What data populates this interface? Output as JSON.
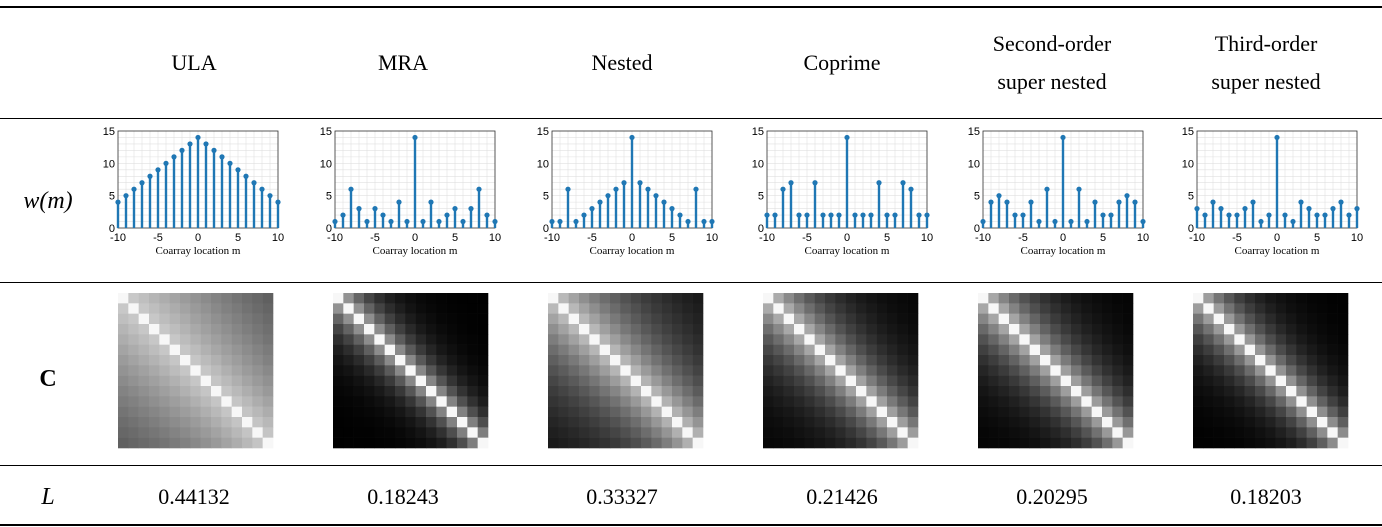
{
  "header": {
    "columns": [
      {
        "line1": "ULA",
        "line2": ""
      },
      {
        "line1": "MRA",
        "line2": ""
      },
      {
        "line1": "Nested",
        "line2": ""
      },
      {
        "line1": "Coprime",
        "line2": ""
      },
      {
        "line1": "Second-order",
        "line2": "super nested"
      },
      {
        "line1": "Third-order",
        "line2": "super nested"
      }
    ]
  },
  "rows": {
    "weight_label": "w(m)",
    "matrix_label": "C",
    "loss_label": "L"
  },
  "loss_values": [
    "0.44132",
    "0.18243",
    "0.33327",
    "0.21426",
    "0.20295",
    "0.18203"
  ],
  "colors": {
    "stem": "#1f77b4",
    "grid": "#e0e0e0"
  },
  "chart_data": [
    {
      "type": "bar",
      "title": "ULA",
      "xlabel": "Coarray location m",
      "ylabel": "",
      "xticks": [
        "-10",
        "-5",
        "0",
        "5",
        "10"
      ],
      "yticks": [
        "0",
        "5",
        "10",
        "15"
      ],
      "xlim": [
        -10,
        10
      ],
      "ylim": [
        0,
        15
      ],
      "grid": true,
      "x": [
        -10,
        -9,
        -8,
        -7,
        -6,
        -5,
        -4,
        -3,
        -2,
        -1,
        0,
        1,
        2,
        3,
        4,
        5,
        6,
        7,
        8,
        9,
        10
      ],
      "values": [
        4,
        5,
        6,
        7,
        8,
        9,
        10,
        11,
        12,
        13,
        14,
        13,
        12,
        11,
        10,
        9,
        8,
        7,
        6,
        5,
        4
      ]
    },
    {
      "type": "bar",
      "title": "MRA",
      "xlabel": "Coarray location m",
      "ylabel": "",
      "xticks": [
        "-10",
        "-5",
        "0",
        "5",
        "10"
      ],
      "yticks": [
        "0",
        "5",
        "10",
        "15"
      ],
      "xlim": [
        -10,
        10
      ],
      "ylim": [
        0,
        15
      ],
      "grid": true,
      "x": [
        -10,
        -9,
        -8,
        -7,
        -6,
        -5,
        -4,
        -3,
        -2,
        -1,
        0,
        1,
        2,
        3,
        4,
        5,
        6,
        7,
        8,
        9,
        10
      ],
      "values": [
        1,
        2,
        6,
        3,
        1,
        3,
        2,
        1,
        4,
        1,
        14,
        1,
        4,
        1,
        2,
        3,
        1,
        3,
        6,
        2,
        1
      ]
    },
    {
      "type": "bar",
      "title": "Nested",
      "xlabel": "Coarray location m",
      "ylabel": "",
      "xticks": [
        "-10",
        "-5",
        "0",
        "5",
        "10"
      ],
      "yticks": [
        "0",
        "5",
        "10",
        "15"
      ],
      "xlim": [
        -10,
        10
      ],
      "ylim": [
        0,
        15
      ],
      "grid": true,
      "x": [
        -10,
        -9,
        -8,
        -7,
        -6,
        -5,
        -4,
        -3,
        -2,
        -1,
        0,
        1,
        2,
        3,
        4,
        5,
        6,
        7,
        8,
        9,
        10
      ],
      "values": [
        1,
        1,
        6,
        1,
        2,
        3,
        4,
        5,
        6,
        7,
        14,
        7,
        6,
        5,
        4,
        3,
        2,
        1,
        6,
        1,
        1
      ]
    },
    {
      "type": "bar",
      "title": "Coprime",
      "xlabel": "Coarray location m",
      "ylabel": "",
      "xticks": [
        "-10",
        "-5",
        "0",
        "5",
        "10"
      ],
      "yticks": [
        "0",
        "5",
        "10",
        "15"
      ],
      "xlim": [
        -10,
        10
      ],
      "ylim": [
        0,
        15
      ],
      "grid": true,
      "x": [
        -10,
        -9,
        -8,
        -7,
        -6,
        -5,
        -4,
        -3,
        -2,
        -1,
        0,
        1,
        2,
        3,
        4,
        5,
        6,
        7,
        8,
        9,
        10
      ],
      "values": [
        2,
        2,
        6,
        7,
        2,
        2,
        7,
        2,
        2,
        2,
        14,
        2,
        2,
        2,
        7,
        2,
        2,
        7,
        6,
        2,
        2
      ]
    },
    {
      "type": "bar",
      "title": "Second-order super nested",
      "xlabel": "Coarray location m",
      "ylabel": "",
      "xticks": [
        "-10",
        "-5",
        "0",
        "5",
        "10"
      ],
      "yticks": [
        "0",
        "5",
        "10",
        "15"
      ],
      "xlim": [
        -10,
        10
      ],
      "ylim": [
        0,
        15
      ],
      "grid": true,
      "x": [
        -10,
        -9,
        -8,
        -7,
        -6,
        -5,
        -4,
        -3,
        -2,
        -1,
        0,
        1,
        2,
        3,
        4,
        5,
        6,
        7,
        8,
        9,
        10
      ],
      "values": [
        1,
        4,
        5,
        4,
        2,
        2,
        4,
        1,
        6,
        1,
        14,
        1,
        6,
        1,
        4,
        2,
        2,
        4,
        5,
        4,
        1
      ]
    },
    {
      "type": "bar",
      "title": "Third-order super nested",
      "xlabel": "Coarray location m",
      "ylabel": "",
      "xticks": [
        "-10",
        "-5",
        "0",
        "5",
        "10"
      ],
      "yticks": [
        "0",
        "5",
        "10",
        "15"
      ],
      "xlim": [
        -10,
        10
      ],
      "ylim": [
        0,
        15
      ],
      "grid": true,
      "x": [
        -10,
        -9,
        -8,
        -7,
        -6,
        -5,
        -4,
        -3,
        -2,
        -1,
        0,
        1,
        2,
        3,
        4,
        5,
        6,
        7,
        8,
        9,
        10
      ],
      "values": [
        3,
        2,
        4,
        3,
        2,
        2,
        3,
        4,
        1,
        2,
        14,
        2,
        1,
        4,
        3,
        2,
        2,
        3,
        4,
        2,
        3
      ]
    },
    {
      "type": "heatmap",
      "title": "ULA",
      "size": 15,
      "decay": 0.045,
      "floor": 0.2
    },
    {
      "type": "heatmap",
      "title": "MRA",
      "size": 15,
      "decay": 0.35,
      "floor": 0.0
    },
    {
      "type": "heatmap",
      "title": "Nested",
      "size": 15,
      "decay": 0.12,
      "floor": 0.0
    },
    {
      "type": "heatmap",
      "title": "Coprime",
      "size": 15,
      "decay": 0.2,
      "floor": 0.0
    },
    {
      "type": "heatmap",
      "title": "Second-order super nested",
      "size": 15,
      "decay": 0.22,
      "floor": 0.0
    },
    {
      "type": "heatmap",
      "title": "Third-order super nested",
      "size": 15,
      "decay": 0.28,
      "floor": 0.0
    }
  ]
}
